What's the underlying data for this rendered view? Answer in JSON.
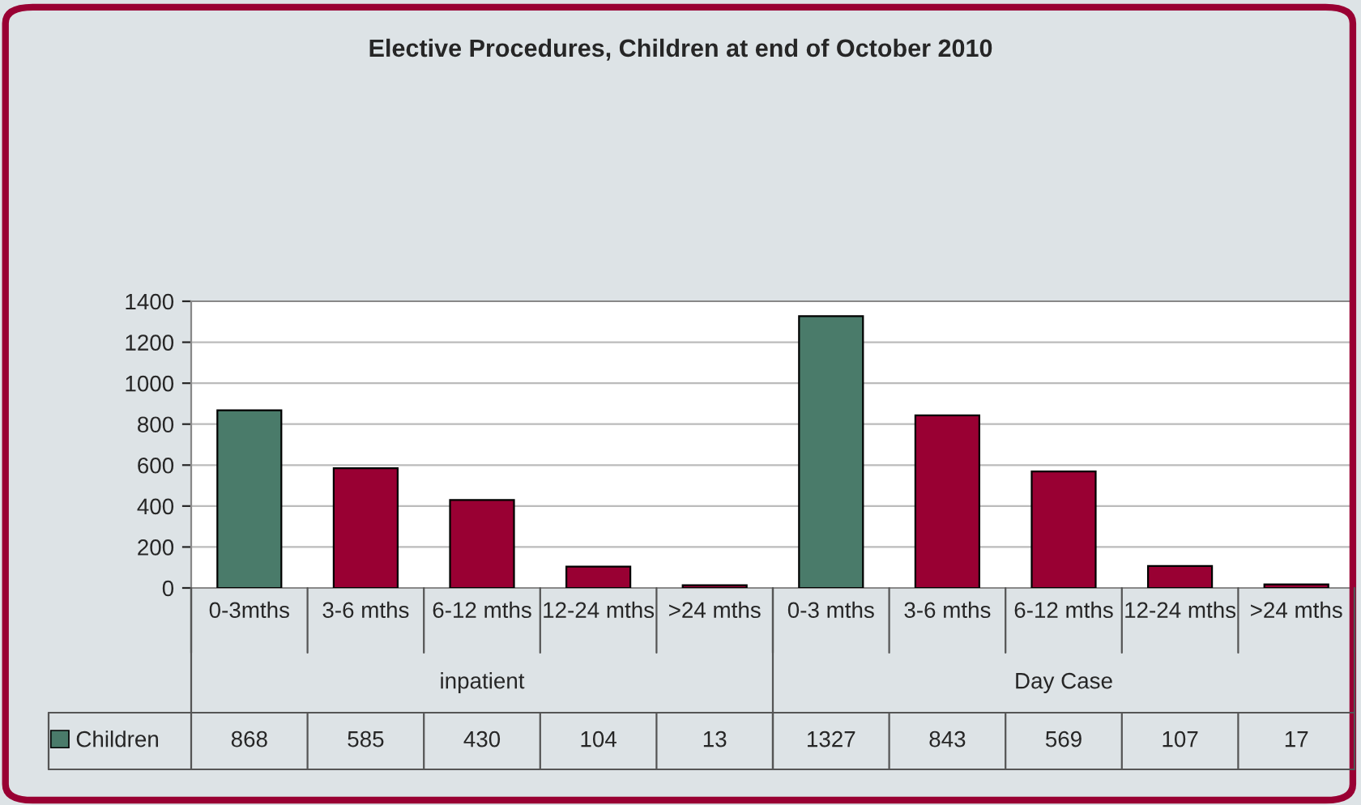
{
  "chart_data": {
    "type": "bar",
    "title": "Elective Procedures, Children at end of October 2010",
    "categories": [
      "0-3mths",
      "3-6 mths",
      "6-12 mths",
      "12-24 mths",
      ">24 mths",
      "0-3 mths",
      "3-6 mths",
      "6-12 mths",
      "12-24 mths",
      ">24 mths"
    ],
    "series": [
      {
        "name": "Children",
        "color": "#4a7b6a",
        "values": [
          868,
          585,
          430,
          104,
          13,
          1327,
          843,
          569,
          107,
          17
        ],
        "colors": [
          "#4a7b6a",
          "#990033",
          "#990033",
          "#990033",
          "#990033",
          "#4a7b6a",
          "#990033",
          "#990033",
          "#990033",
          "#990033"
        ]
      }
    ],
    "annotations": [
      "inpatient",
      "Day Case"
    ],
    "ylim": [
      0,
      1400
    ],
    "yticks": [
      0,
      200,
      400,
      600,
      800,
      1000,
      1200,
      1400
    ],
    "grid": "y",
    "legend": "bottom left",
    "data_labels": true
  }
}
